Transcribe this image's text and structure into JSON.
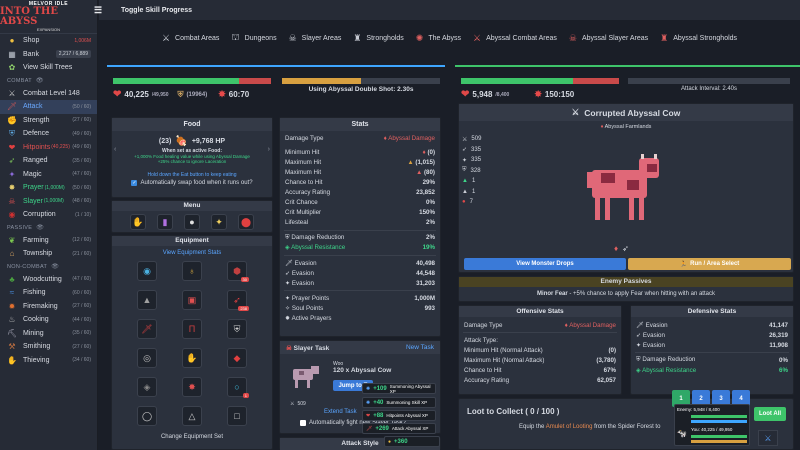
{
  "logo": {
    "line1": "MELVOR IDLE",
    "line2": "INTO THE ABYSS",
    "line3": "EXPANSION"
  },
  "sidebar": {
    "top": [
      {
        "label": "Shop",
        "right": "1,006M",
        "right_red": true,
        "icon": "coin-icon",
        "color": "#f0c040"
      },
      {
        "label": "Bank",
        "right": "2,217 / 6,889",
        "icon": "bank-icon",
        "color": "#c0c6d0",
        "box": true
      },
      {
        "label": "View Skill Trees",
        "right": "",
        "icon": "skill-tree-icon",
        "color": "#8fd06a"
      }
    ],
    "combat_header": "COMBAT",
    "combat": [
      {
        "label": "Combat Level 148",
        "right": "",
        "icon": "crossed-swords-icon",
        "color": "#d0d0d0"
      },
      {
        "label": "Attack",
        "right": "(50 / 60)",
        "icon": "attack-icon",
        "color": "#c95656",
        "active": true
      },
      {
        "label": "Strength",
        "right": "(27 / 60)",
        "icon": "strength-icon",
        "color": "#d05050"
      },
      {
        "label": "Defence",
        "right": "(49 / 60)",
        "icon": "defence-icon",
        "color": "#5fa8e0"
      },
      {
        "label": "Hitpoints",
        "extra": "(40,225)",
        "right": "(49 / 60)",
        "icon": "heart-icon",
        "color": "#e04040",
        "red_label": true
      },
      {
        "label": "Ranged",
        "right": "(35 / 60)",
        "icon": "ranged-icon",
        "color": "#7bc05a"
      },
      {
        "label": "Magic",
        "right": "(47 / 60)",
        "icon": "magic-icon",
        "color": "#8a6ad8"
      },
      {
        "label": "Prayer",
        "extra": "(1,000M)",
        "right": "(50 / 60)",
        "icon": "prayer-icon",
        "color": "#e8d070",
        "green_label": true
      },
      {
        "label": "Slayer",
        "extra": "(1,000M)",
        "right": "(48 / 60)",
        "icon": "slayer-icon",
        "color": "#e05050",
        "green_label": true
      },
      {
        "label": "Corruption",
        "right": "(1 / 10)",
        "icon": "corruption-icon",
        "color": "#d03030"
      }
    ],
    "passive_header": "PASSIVE",
    "passive": [
      {
        "label": "Farming",
        "right": "(12 / 60)",
        "icon": "farming-icon",
        "color": "#7cc850"
      },
      {
        "label": "Township",
        "right": "(21 / 60)",
        "icon": "township-icon",
        "color": "#d0a060"
      }
    ],
    "noncombat_header": "NON-COMBAT",
    "noncombat": [
      {
        "label": "Woodcutting",
        "right": "(47 / 60)",
        "icon": "woodcutting-icon",
        "color": "#4aa040"
      },
      {
        "label": "Fishing",
        "right": "(60 / 60)",
        "icon": "fishing-icon",
        "color": "#4a90e0"
      },
      {
        "label": "Firemaking",
        "right": "(27 / 60)",
        "icon": "firemaking-icon",
        "color": "#e07030"
      },
      {
        "label": "Cooking",
        "right": "(44 / 60)",
        "icon": "cooking-icon",
        "color": "#c0c0c0"
      },
      {
        "label": "Mining",
        "right": "(35 / 60)",
        "icon": "mining-icon",
        "color": "#a0a0b0"
      },
      {
        "label": "Smithing",
        "right": "(27 / 60)",
        "icon": "smithing-icon",
        "color": "#c07040"
      },
      {
        "label": "Thieving",
        "right": "(34 / 60)",
        "icon": "thieving-icon",
        "color": "#a070d0"
      }
    ]
  },
  "topbar": {
    "toggle_label": "Toggle Skill Progress"
  },
  "nav": [
    {
      "label": "Combat Areas",
      "icon": "combat-areas-icon"
    },
    {
      "label": "Dungeons",
      "icon": "dungeons-icon"
    },
    {
      "label": "Slayer Areas",
      "icon": "slayer-areas-icon"
    },
    {
      "label": "Strongholds",
      "icon": "strongholds-icon"
    },
    {
      "label": "The Abyss",
      "icon": "abyss-icon"
    },
    {
      "label": "Abyssal Combat Areas",
      "icon": "abyssal-combat-icon"
    },
    {
      "label": "Abyssal Slayer Areas",
      "icon": "abyssal-slayer-icon"
    },
    {
      "label": "Abyssal Strongholds",
      "icon": "abyssal-strongholds-icon"
    }
  ],
  "player": {
    "hp": "40,225",
    "hp_max": "/49,950",
    "hp_fraction": 0.8,
    "shield": "(19964)",
    "prayer": "60:70",
    "attack_text": "Using Abyssal Double Shot: 2.30s",
    "attack_progress": 0.5
  },
  "enemy": {
    "hp": "5,948",
    "hp_max": "/8,400",
    "hp_fraction": 0.71,
    "prayer": "150:150",
    "attack_interval": "Attack Interval: 2.40s",
    "name": "Corrupted Abyssal Cow",
    "area": "Abyssal Farmlands",
    "stats": [
      "509",
      "335",
      "335",
      "328",
      "1",
      "1",
      "7"
    ],
    "view_drops": "View Monster Drops",
    "run": "Run / Area Select",
    "passives_title": "Enemy Passives",
    "passive_name": "Minor Fear",
    "passive_desc": " - +5% chance to apply Fear when hitting with an attack"
  },
  "food": {
    "title": "Food",
    "qty": "(23)",
    "heal": "+9,768 HP",
    "active_label": "When set as active Food:",
    "effect1": "+1,000% Food healing value while using Abyssal Damage",
    "effect2": "+25% chance to ignore Laceration",
    "hold_hint": "Hold down the Eat button to keep eating",
    "auto_swap": "Automatically swap food when it runs out?"
  },
  "menu": {
    "title": "Menu"
  },
  "equipment": {
    "title": "Equipment",
    "view_stats": "View Equipment Stats",
    "change_set": "Change Equipment Set",
    "badges": [
      "30",
      "238",
      "1"
    ]
  },
  "stats": {
    "title": "Stats",
    "damage_type_label": "Damage Type",
    "damage_type": "Abyssal Damage",
    "rows": [
      {
        "label": "Minimum Hit",
        "value": "(0)"
      },
      {
        "label": "Maximum Hit",
        "value": "(1,015)"
      },
      {
        "label": "Maximum Hit",
        "value": "(80)"
      },
      {
        "label": "Chance to Hit",
        "value": "29%"
      },
      {
        "label": "Accuracy Rating",
        "value": "23,852"
      },
      {
        "label": "Crit Chance",
        "value": "0%"
      },
      {
        "label": "Crit Multiplier",
        "value": "150%"
      },
      {
        "label": "Lifesteal",
        "value": "2%"
      }
    ],
    "dr_label": "Damage Reduction",
    "dr": "2%",
    "ar_label": "Abyssal Resistance",
    "ar": "19%",
    "evasion": [
      {
        "label": "Evasion",
        "value": "40,498"
      },
      {
        "label": "Evasion",
        "value": "44,548"
      },
      {
        "label": "Evasion",
        "value": "31,203"
      }
    ],
    "prayer_points_label": "Prayer Points",
    "prayer_points": "1,000M",
    "soul_points_label": "Soul Points",
    "soul_points": "993",
    "active_prayers": "Active Prayers"
  },
  "slayer": {
    "title": "Slayer Task",
    "new_task": "New Task",
    "task_line1": "Woo",
    "task_line2": "120 x Abyssal Cow",
    "jump": "Jump to E",
    "extend": "Extend Task",
    "auto": "Automatically fight new Slayer Task?",
    "kills": "509"
  },
  "attack_style": {
    "title": "Attack Style",
    "badge": "+360"
  },
  "offensive": {
    "title": "Offensive Stats",
    "damage_type_label": "Damage Type",
    "damage_type": "Abyssal Damage",
    "rows": [
      {
        "label": "Attack Type:",
        "value": ""
      },
      {
        "label": "Minimum Hit (Normal Attack)",
        "value": "(0)"
      },
      {
        "label": "Maximum Hit (Normal Attack)",
        "value": "(3,780)"
      },
      {
        "label": "Chance to Hit",
        "value": "67%"
      },
      {
        "label": "Accuracy Rating",
        "value": "62,057"
      }
    ]
  },
  "defensive": {
    "title": "Defensive Stats",
    "evasion": [
      {
        "label": "Evasion",
        "value": "41,147"
      },
      {
        "label": "Evasion",
        "value": "26,319"
      },
      {
        "label": "Evasion",
        "value": "11,908"
      }
    ],
    "dr_label": "Damage Reduction",
    "dr": "0%",
    "ar_label": "Abyssal Resistance",
    "ar": "6%"
  },
  "loot": {
    "title": "Loot to Collect ( 0 / 100 )",
    "loot_all": "Loot All",
    "hint_pre": "Equip the ",
    "hint_link": "Amulet of Looting",
    "hint_post": " from the Spider Forest to"
  },
  "notifications": [
    {
      "amount": "+109",
      "label": "Summoning Abyssal XP"
    },
    {
      "amount": "+40",
      "label": "Summoning Skill XP"
    },
    {
      "amount": "+88",
      "label": "Hitpoints Abyssal XP"
    },
    {
      "amount": "+269",
      "label": "Attack Abyssal XP"
    }
  ],
  "tabs": [
    "1",
    "2",
    "3",
    "4"
  ],
  "mini": {
    "enemy": "Enemy: 5,948 / 8,400",
    "you": "You: 40,225 / 49,950"
  },
  "colors": {
    "accent_green": "#3ed68a",
    "hp_red": "#e04848",
    "abyss_red": "#e06060",
    "link_blue": "#5aa5ff",
    "gold": "#f0c040"
  }
}
